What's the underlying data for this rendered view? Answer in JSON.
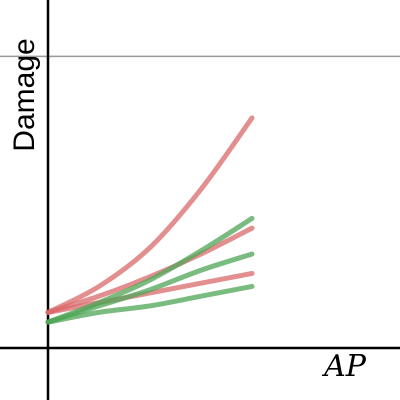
{
  "chart_data": {
    "type": "line",
    "xlabel": "AP",
    "ylabel": "Damage",
    "xlim": [
      0,
      1.4
    ],
    "ylim": [
      0,
      1.0
    ],
    "grid": false,
    "reference_line": {
      "y": 0.9,
      "color": "#999999"
    },
    "series": [
      {
        "color": "#d9686a",
        "x": [
          0,
          0.25,
          0.5,
          0.75,
          1.0
        ],
        "y": [
          0.11,
          0.19,
          0.31,
          0.49,
          0.71
        ]
      },
      {
        "color": "#d9686a",
        "x": [
          0,
          0.25,
          0.5,
          0.75,
          1.0
        ],
        "y": [
          0.11,
          0.16,
          0.22,
          0.29,
          0.37
        ]
      },
      {
        "color": "#d9686a",
        "x": [
          0,
          0.25,
          0.5,
          0.75,
          1.0
        ],
        "y": [
          0.11,
          0.14,
          0.17,
          0.2,
          0.23
        ]
      },
      {
        "color": "#4ea555",
        "x": [
          0,
          0.25,
          0.5,
          0.75,
          1.0
        ],
        "y": [
          0.08,
          0.14,
          0.21,
          0.3,
          0.4
        ]
      },
      {
        "color": "#4ea555",
        "x": [
          0,
          0.25,
          0.5,
          0.75,
          1.0
        ],
        "y": [
          0.08,
          0.13,
          0.18,
          0.24,
          0.29
        ]
      },
      {
        "color": "#4ea555",
        "x": [
          0,
          0.25,
          0.5,
          0.75,
          1.0
        ],
        "y": [
          0.08,
          0.11,
          0.13,
          0.16,
          0.19
        ]
      }
    ]
  }
}
